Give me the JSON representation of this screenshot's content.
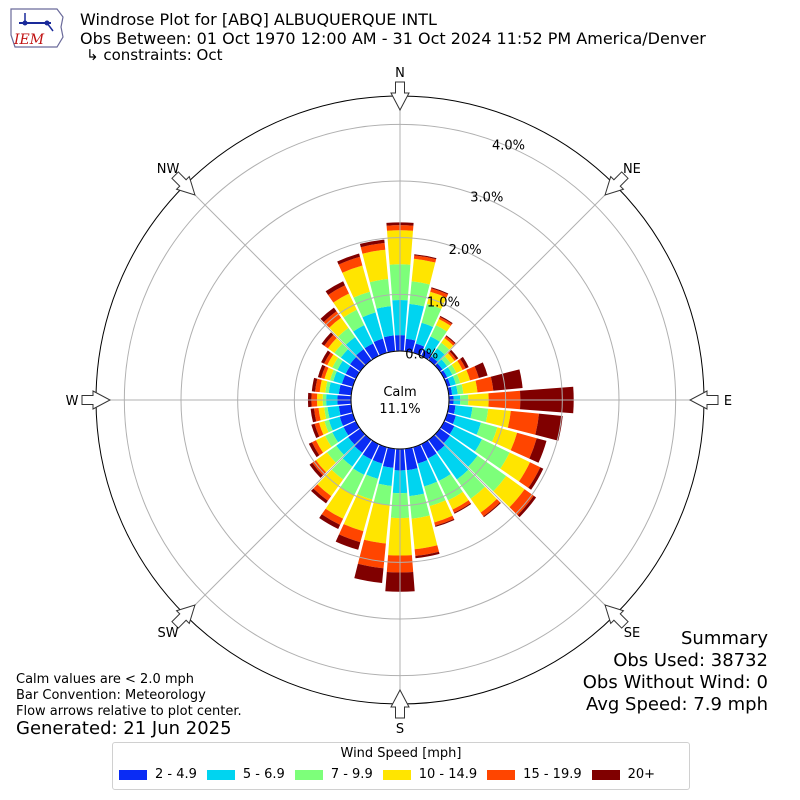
{
  "header": {
    "title": "Windrose Plot for [ABQ] ALBUQUERQUE INTL",
    "subtitle": "Obs Between: 01 Oct 1970 12:00 AM - 31 Oct 2024 11:52 PM America/Denver",
    "constraints": "↳ constraints: Oct",
    "logo_text": "IEM"
  },
  "notes": {
    "calm_note": "Calm values are < 2.0 mph",
    "bar_convention": "Bar Convention: Meteorology",
    "flow_note": "Flow arrows relative to plot center.",
    "generated": "Generated: 21 Jun 2025"
  },
  "summary": {
    "heading": "Summary",
    "obs_used": "Obs Used: 38732",
    "obs_without_wind": "Obs Without Wind: 0",
    "avg_speed": "Avg Speed: 7.9 mph"
  },
  "chart_data": {
    "type": "windrose",
    "calm_label": "Calm",
    "calm_value": "11.1%",
    "radial_ticks": [
      "0.0%",
      "1.0%",
      "2.0%",
      "3.0%",
      "4.0%"
    ],
    "radial_values": [
      0,
      1,
      2,
      3,
      4
    ],
    "r_max": 4.5,
    "directions": [
      "N",
      "NE",
      "E",
      "SE",
      "S",
      "SW",
      "W",
      "NW"
    ],
    "legend_title": "Wind Speed [mph]",
    "bins": [
      {
        "label": "2 - 4.9",
        "color": "#0a2cf5"
      },
      {
        "label": "5 - 6.9",
        "color": "#00d4f0"
      },
      {
        "label": "7 - 9.9",
        "color": "#7dff7a"
      },
      {
        "label": "10 - 14.9",
        "color": "#ffe500"
      },
      {
        "label": "15 - 19.9",
        "color": "#ff4500"
      },
      {
        "label": "20+",
        "color": "#800000"
      }
    ],
    "sectors": [
      {
        "dir": 0,
        "values": [
          0.28,
          0.62,
          0.63,
          0.6,
          0.09,
          0.05
        ]
      },
      {
        "dir": 10,
        "values": [
          0.22,
          0.62,
          0.4,
          0.4,
          0.06,
          0.02
        ]
      },
      {
        "dir": 20,
        "values": [
          0.17,
          0.38,
          0.35,
          0.22,
          0.06,
          0.02
        ]
      },
      {
        "dir": 30,
        "values": [
          0.12,
          0.26,
          0.22,
          0.12,
          0.04,
          0.02
        ]
      },
      {
        "dir": 40,
        "values": [
          0.08,
          0.18,
          0.12,
          0.1,
          0.04,
          0.02
        ]
      },
      {
        "dir": 50,
        "values": [
          0.06,
          0.1,
          0.08,
          0.08,
          0.04,
          0.04
        ]
      },
      {
        "dir": 60,
        "values": [
          0.06,
          0.1,
          0.08,
          0.12,
          0.06,
          0.06
        ]
      },
      {
        "dir": 70,
        "values": [
          0.06,
          0.1,
          0.08,
          0.18,
          0.16,
          0.16
        ]
      },
      {
        "dir": 80,
        "values": [
          0.06,
          0.1,
          0.1,
          0.25,
          0.28,
          0.52
        ]
      },
      {
        "dir": 90,
        "values": [
          0.08,
          0.12,
          0.14,
          0.36,
          0.56,
          0.94
        ]
      },
      {
        "dir": 100,
        "values": [
          0.12,
          0.3,
          0.28,
          0.4,
          0.5,
          0.42
        ]
      },
      {
        "dir": 110,
        "values": [
          0.16,
          0.46,
          0.3,
          0.36,
          0.36,
          0.18
        ]
      },
      {
        "dir": 120,
        "values": [
          0.2,
          0.54,
          0.54,
          0.4,
          0.2,
          0.06
        ]
      },
      {
        "dir": 130,
        "values": [
          0.22,
          0.6,
          0.62,
          0.4,
          0.2,
          0.05
        ]
      },
      {
        "dir": 140,
        "values": [
          0.26,
          0.6,
          0.42,
          0.3,
          0.08,
          0.02
        ]
      },
      {
        "dir": 150,
        "values": [
          0.28,
          0.44,
          0.38,
          0.18,
          0.06,
          0.02
        ]
      },
      {
        "dir": 160,
        "values": [
          0.3,
          0.42,
          0.36,
          0.3,
          0.06,
          0.02
        ]
      },
      {
        "dir": 170,
        "values": [
          0.38,
          0.46,
          0.4,
          0.54,
          0.12,
          0.04
        ]
      },
      {
        "dir": 180,
        "values": [
          0.38,
          0.4,
          0.44,
          0.66,
          0.3,
          0.34
        ]
      },
      {
        "dir": 190,
        "values": [
          0.34,
          0.32,
          0.34,
          0.68,
          0.44,
          0.26
        ]
      },
      {
        "dir": 200,
        "values": [
          0.3,
          0.28,
          0.38,
          0.58,
          0.2,
          0.14
        ]
      },
      {
        "dir": 210,
        "values": [
          0.3,
          0.3,
          0.4,
          0.46,
          0.12,
          0.08
        ]
      },
      {
        "dir": 220,
        "values": [
          0.28,
          0.3,
          0.28,
          0.36,
          0.1,
          0.06
        ]
      },
      {
        "dir": 230,
        "values": [
          0.26,
          0.26,
          0.2,
          0.24,
          0.08,
          0.06
        ]
      },
      {
        "dir": 240,
        "values": [
          0.24,
          0.22,
          0.14,
          0.18,
          0.08,
          0.06
        ]
      },
      {
        "dir": 250,
        "values": [
          0.24,
          0.2,
          0.08,
          0.1,
          0.08,
          0.06
        ]
      },
      {
        "dir": 260,
        "values": [
          0.22,
          0.2,
          0.06,
          0.1,
          0.08,
          0.06
        ]
      },
      {
        "dir": 270,
        "values": [
          0.24,
          0.2,
          0.06,
          0.1,
          0.1,
          0.06
        ]
      },
      {
        "dir": 280,
        "values": [
          0.22,
          0.18,
          0.06,
          0.1,
          0.08,
          0.06
        ]
      },
      {
        "dir": 290,
        "values": [
          0.2,
          0.16,
          0.06,
          0.1,
          0.06,
          0.06
        ]
      },
      {
        "dir": 300,
        "values": [
          0.2,
          0.16,
          0.1,
          0.1,
          0.06,
          0.06
        ]
      },
      {
        "dir": 310,
        "values": [
          0.22,
          0.2,
          0.14,
          0.14,
          0.08,
          0.06
        ]
      },
      {
        "dir": 320,
        "values": [
          0.24,
          0.26,
          0.2,
          0.22,
          0.14,
          0.08
        ]
      },
      {
        "dir": 330,
        "values": [
          0.24,
          0.36,
          0.3,
          0.32,
          0.16,
          0.08
        ]
      },
      {
        "dir": 340,
        "values": [
          0.26,
          0.48,
          0.38,
          0.48,
          0.16,
          0.06
        ]
      },
      {
        "dir": 350,
        "values": [
          0.28,
          0.52,
          0.48,
          0.52,
          0.12,
          0.06
        ]
      }
    ]
  }
}
